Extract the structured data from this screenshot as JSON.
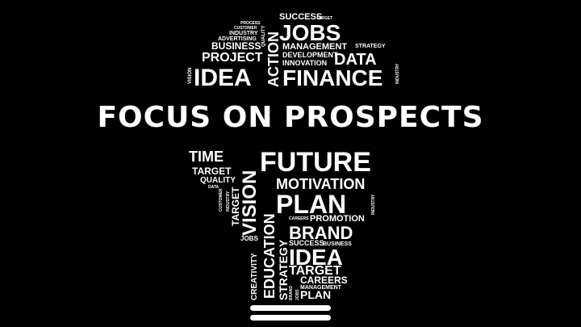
{
  "headline": "FOCUS ON PROSPECTS",
  "colors": {
    "background": "#000000",
    "foreground": "#ffffff"
  },
  "top_cloud": {
    "words": [
      "SUCCESS",
      "TARGET",
      "JOBS",
      "QUALITY",
      "PROCESS",
      "CUSTOMER",
      "INDUSTRY",
      "ADVERTISING",
      "BUSINESS",
      "STRATEGY",
      "MANAGEMENT",
      "PROJECT",
      "DEVELOPMENT",
      "DATA",
      "INNOVATION",
      "ACTION",
      "VISION",
      "IDEA",
      "FINANCE",
      "INDUSTRY"
    ]
  },
  "bottom_cloud": {
    "words": [
      "TIME",
      "FUTURE",
      "TARGET",
      "QUALITY",
      "DATA",
      "CUSTOMER",
      "INDUSTRY",
      "TARGET",
      "VISION",
      "MOTIVATION",
      "PLAN",
      "INDUSTRY",
      "CAREERS",
      "PROMOTION",
      "BRAND",
      "EDUCATION",
      "JOBS",
      "SUCCESS",
      "BUSINESS",
      "IDEA",
      "CREATIVITY",
      "STRATEGY",
      "TARGET",
      "CAREERS",
      "MANAGEMENT",
      "BRAND",
      "JOBS",
      "PLAN"
    ]
  }
}
